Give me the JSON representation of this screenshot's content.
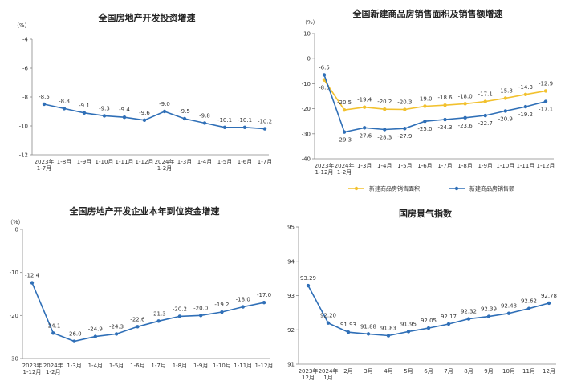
{
  "charts": [
    {
      "title": "全国房地产开发投资增速",
      "unit": "（%）",
      "color": "#2f6fb7",
      "chart_data": {
        "type": "line",
        "categories": [
          "2023年\n1-7月",
          "1-8月",
          "1-9月",
          "1-10月",
          "1-11月",
          "1-12月",
          "2024年\n1-2月",
          "1-3月",
          "1-4月",
          "1-5月",
          "1-6月",
          "1-7月"
        ],
        "series": [
          {
            "values": [
              -8.5,
              -8.8,
              -9.1,
              -9.3,
              -9.4,
              -9.6,
              -9.0,
              -9.5,
              -9.8,
              -10.1,
              -10.1,
              -10.2
            ],
            "labels": [
              "-8.5",
              "-8.8",
              "-9.1",
              "-9.3",
              "-9.4",
              "-9.6",
              "-9.0",
              "-9.5",
              "-9.8",
              "-10.1",
              "-10.1",
              "-10.2"
            ]
          }
        ],
        "yticks": [
          "-4",
          "-6",
          "-8",
          "-10",
          "-12"
        ],
        "ylim": [
          -12,
          -4
        ]
      }
    },
    {
      "title": "全国新建商品房销售面积及销售额增速",
      "unit": "（%）",
      "chart_data": {
        "type": "line",
        "categories": [
          "2023年\n1-12月",
          "2024年\n1-2月",
          "1-3月",
          "1-4月",
          "1-5月",
          "1-6月",
          "1-7月",
          "1-8月",
          "1-9月",
          "1-10月",
          "1-11月",
          "1-12月"
        ],
        "series": [
          {
            "name": "新建商品房销售面积",
            "color": "#f2c12e",
            "values": [
              -8.5,
              -20.5,
              -19.4,
              -20.2,
              -20.3,
              -19.0,
              -18.6,
              -18.0,
              -17.1,
              -15.8,
              -14.3,
              -12.9
            ],
            "labels": [
              "-8.5",
              "-20.5",
              "-19.4",
              "-20.2",
              "-20.3",
              "-19.0",
              "-18.6",
              "-18.0",
              "-17.1",
              "-15.8",
              "-14.3",
              "-12.9"
            ]
          },
          {
            "name": "新建商品房销售额",
            "color": "#2f6fb7",
            "values": [
              -6.5,
              -29.3,
              -27.6,
              -28.3,
              -27.9,
              -25.0,
              -24.3,
              -23.6,
              -22.7,
              -20.9,
              -19.2,
              -17.1
            ],
            "labels": [
              "-6.5",
              "-29.3",
              "-27.6",
              "-28.3",
              "-27.9",
              "-25.0",
              "-24.3",
              "-23.6",
              "-22.7",
              "-20.9",
              "-19.2",
              "-17.1"
            ]
          }
        ],
        "yticks": [
          "10",
          "0",
          "-10",
          "-20",
          "-30",
          "-40"
        ],
        "ylim": [
          -40,
          10
        ],
        "legend": "bottom"
      }
    },
    {
      "title": "全国房地产开发企业本年到位资金增速",
      "unit": "（%）",
      "color": "#2f6fb7",
      "chart_data": {
        "type": "line",
        "categories": [
          "2023年\n1-12月",
          "2024年\n1-2月",
          "1-3月",
          "1-4月",
          "1-5月",
          "1-6月",
          "1-7月",
          "1-8月",
          "1-9月",
          "1-10月",
          "1-11月",
          "1-12月"
        ],
        "series": [
          {
            "values": [
              -12.4,
              -24.1,
              -26.0,
              -24.9,
              -24.3,
              -22.6,
              -21.3,
              -20.2,
              -20.0,
              -19.2,
              -18.0,
              -17.0
            ],
            "labels": [
              "-12.4",
              "-24.1",
              "-26.0",
              "-24.9",
              "-24.3",
              "-22.6",
              "-21.3",
              "-20.2",
              "-20.0",
              "-19.2",
              "-18.0",
              "-17.0"
            ]
          }
        ],
        "yticks": [
          "0",
          "-10",
          "-20",
          "-30"
        ],
        "ylim": [
          -30,
          0
        ]
      }
    },
    {
      "title": "国房景气指数",
      "color": "#2f6fb7",
      "chart_data": {
        "type": "line",
        "categories": [
          "2023年\n12月",
          "2024年\n1月",
          "2月",
          "3月",
          "4月",
          "5月",
          "6月",
          "7月",
          "8月",
          "9月",
          "10月",
          "11月",
          "12月"
        ],
        "series": [
          {
            "values": [
              93.29,
              92.2,
              91.93,
              91.88,
              91.83,
              91.95,
              92.05,
              92.17,
              92.32,
              92.39,
              92.48,
              92.62,
              92.78
            ],
            "labels": [
              "93.29",
              "92.20",
              "91.93",
              "91.88",
              "91.83",
              "91.95",
              "92.05",
              "92.17",
              "92.32",
              "92.39",
              "92.48",
              "92.62",
              "92.78"
            ]
          }
        ],
        "yticks": [
          "95",
          "94",
          "93",
          "92",
          "91"
        ],
        "ylim": [
          91,
          95
        ]
      }
    }
  ]
}
